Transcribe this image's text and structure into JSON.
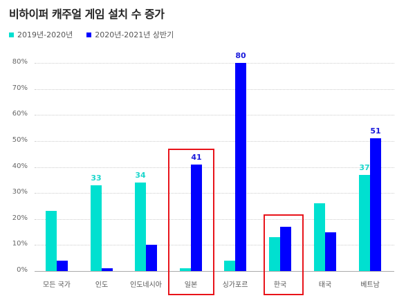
{
  "title": "비하이퍼 캐주얼 게임 설치 수 증가",
  "legend": [
    {
      "label": "2019년-2020년",
      "color": "#00e0d0"
    },
    {
      "label": "2020년-2021년 상반기",
      "color": "#0000ff"
    }
  ],
  "chart_data": {
    "type": "bar",
    "title": "비하이퍼 캐주얼 게임 설치 수 증가",
    "xlabel": "",
    "ylabel": "",
    "ylim": [
      0,
      80
    ],
    "yticks": [
      "0%",
      "10%",
      "20%",
      "30%",
      "40%",
      "50%",
      "60%",
      "70%",
      "80%"
    ],
    "grid": true,
    "legend_position": "top-left",
    "categories": [
      "모든 국가",
      "인도",
      "인도네시아",
      "일본",
      "싱가포르",
      "한국",
      "태국",
      "베트남"
    ],
    "series": [
      {
        "name": "2019년-2020년",
        "color": "#00e0d0",
        "values": [
          23,
          33,
          34,
          1,
          4,
          13,
          26,
          37
        ]
      },
      {
        "name": "2020년-2021년 상반기",
        "color": "#0000ff",
        "values": [
          4,
          1,
          10,
          41,
          80,
          17,
          15,
          51
        ]
      }
    ],
    "data_labels": [
      {
        "category": "인도",
        "series": 0,
        "text": "33"
      },
      {
        "category": "인도네시아",
        "series": 0,
        "text": "34"
      },
      {
        "category": "일본",
        "series": 1,
        "text": "41"
      },
      {
        "category": "싱가포르",
        "series": 1,
        "text": "80"
      },
      {
        "category": "베트남",
        "series": 0,
        "text": "37"
      },
      {
        "category": "베트남",
        "series": 1,
        "text": "51"
      }
    ],
    "highlighted_categories": [
      "일본",
      "한국"
    ]
  }
}
